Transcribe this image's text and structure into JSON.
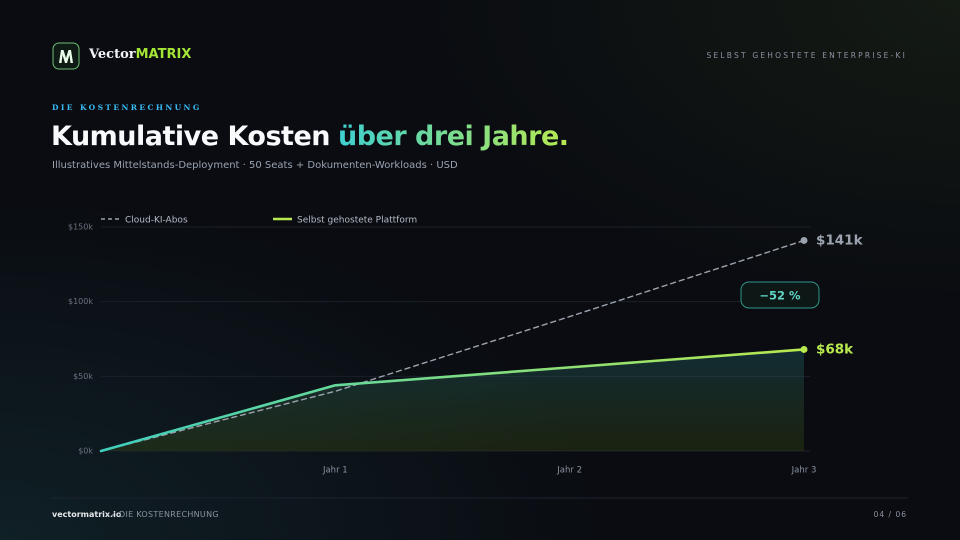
{
  "header": {
    "brand_lead": "Vector",
    "brand_accent": "MATRIX",
    "tagline": "SELBST GEHOSTETE ENTERPRISE-KI"
  },
  "eyebrow": "DIE KOSTENRECHNUNG",
  "title": {
    "lead": "Kumulative Kosten",
    "accent": "über drei Jahre."
  },
  "subtitle": "Illustratives Mittelstands-Deployment · 50 Seats + Dokumenten-Workloads · USD",
  "chart_data": {
    "type": "line",
    "x": [
      0,
      1,
      2,
      3
    ],
    "xlim": [
      0,
      3
    ],
    "xticks": [
      {
        "value": 1,
        "label": "Jahr 1"
      },
      {
        "value": 2,
        "label": "Jahr 2"
      },
      {
        "value": 3,
        "label": "Jahr 3"
      }
    ],
    "ylim": [
      0,
      150000
    ],
    "yticks": [
      {
        "value": 0,
        "label": "$0k"
      },
      {
        "value": 50000,
        "label": "$50k"
      },
      {
        "value": 100000,
        "label": "$100k"
      },
      {
        "value": 150000,
        "label": "$150k"
      }
    ],
    "grid": true,
    "legend": "top-left",
    "series": [
      {
        "name": "Cloud-KI-Abos",
        "color": "#9ca3af",
        "dashed": true,
        "values": [
          0,
          40000,
          90000,
          141000
        ],
        "value_labels": [
          null,
          null,
          null,
          "$141k"
        ]
      },
      {
        "name": "Selbst gehostete Plattform",
        "color": "#b8e94f",
        "dashed": false,
        "values": [
          0,
          44000,
          56000,
          68000
        ],
        "value_labels": [
          null,
          null,
          null,
          "$68k"
        ]
      }
    ],
    "annotation": "−52 %"
  },
  "footer": {
    "site": "vectormatrix.io",
    "section": "DIE KOSTENRECHNUNG",
    "page": "04 / 06"
  }
}
